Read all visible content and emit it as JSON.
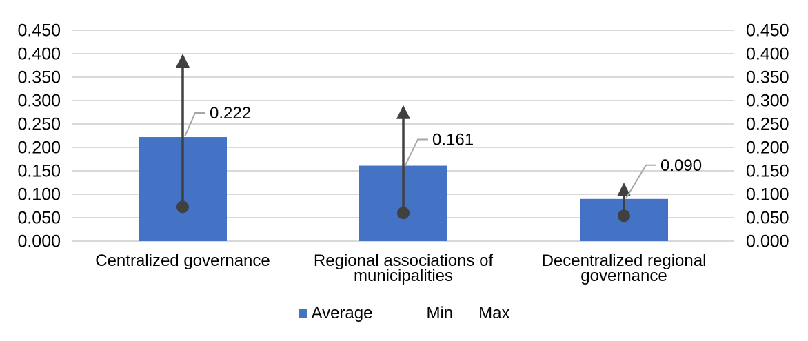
{
  "chart_data": {
    "type": "bar",
    "title": "",
    "categories": [
      "Centralized governance",
      "Regional associations of municipalities",
      "Decentralized regional governance"
    ],
    "categories_wrapped": [
      [
        "Centralized governance"
      ],
      [
        "Regional associations of",
        "municipalities"
      ],
      [
        "Decentralized regional",
        "governance"
      ]
    ],
    "series": [
      {
        "name": "Average",
        "marker": "bar",
        "values": [
          0.222,
          0.161,
          0.09
        ]
      },
      {
        "name": "Min",
        "marker": "dot",
        "values": [
          0.073,
          0.06,
          0.054
        ]
      },
      {
        "name": "Max",
        "marker": "arrow-up",
        "values": [
          0.4,
          0.29,
          0.125
        ]
      }
    ],
    "data_labels": [
      "0.222",
      "0.161",
      "0.090"
    ],
    "ylim": [
      0,
      0.45
    ],
    "ytick_step": 0.05,
    "ytick_labels": [
      "0.450",
      "0.400",
      "0.350",
      "0.300",
      "0.250",
      "0.200",
      "0.150",
      "0.100",
      "0.050",
      "0.000"
    ],
    "axes": {
      "left": true,
      "right": true
    },
    "grid": true,
    "legend": {
      "position": "bottom",
      "entries": [
        {
          "label": "Average",
          "swatch": "blue-square"
        },
        {
          "label": "Min",
          "swatch": "none"
        },
        {
          "label": "Max",
          "swatch": "none"
        }
      ]
    },
    "colors": {
      "bar": "#4472C4",
      "marker": "#404040",
      "gridline": "#D9D9D9",
      "leader": "#A6A6A6",
      "text": "#000000",
      "background": "#FFFFFF"
    }
  }
}
